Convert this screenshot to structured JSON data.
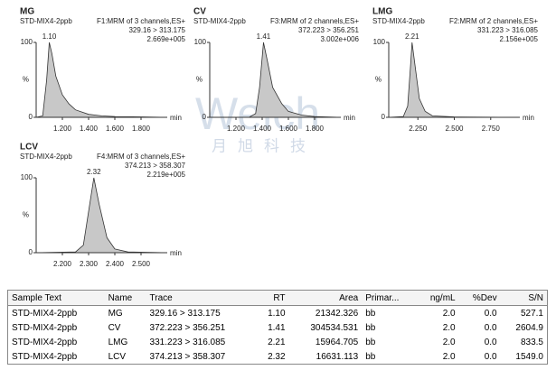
{
  "chart_data": [
    {
      "type": "area",
      "title": "MG",
      "subtitle": "STD-MIX4-2ppb",
      "function": "F1:MRM of 3 channels,ES+",
      "trace": "329.16 > 313.175",
      "intensity": "2.669e+005",
      "x": [
        1.0,
        1.05,
        1.08,
        1.1,
        1.12,
        1.15,
        1.2,
        1.25,
        1.3,
        1.4,
        1.5,
        1.6,
        1.8,
        2.0
      ],
      "values": [
        0,
        2,
        50,
        100,
        85,
        55,
        30,
        18,
        10,
        4,
        2,
        1,
        0.5,
        0
      ],
      "color": "#c8c8c8",
      "peak": {
        "value": 1.1,
        "label": "1.10"
      },
      "x_label": "min",
      "y_label": "%",
      "xlim": [
        1.0,
        2.0
      ],
      "xticks": [
        {
          "value": 1.2,
          "label": "1.200"
        },
        {
          "value": 1.4,
          "label": "1.400"
        },
        {
          "value": 1.6,
          "label": "1.600"
        },
        {
          "value": 1.8,
          "label": "1.800"
        }
      ],
      "ylim": [
        0,
        100
      ],
      "yticks": [
        0,
        100
      ]
    },
    {
      "type": "area",
      "title": "CV",
      "subtitle": "STD-MIX4-2ppb",
      "function": "F3:MRM of 2 channels,ES+",
      "trace": "372.223 > 356.251",
      "intensity": "3.002e+006",
      "x": [
        1.0,
        1.3,
        1.35,
        1.38,
        1.41,
        1.44,
        1.48,
        1.55,
        1.6,
        1.7,
        1.8,
        2.0
      ],
      "values": [
        0,
        0,
        5,
        40,
        100,
        75,
        40,
        18,
        8,
        3,
        1,
        0
      ],
      "color": "#c8c8c8",
      "peak": {
        "value": 1.41,
        "label": "1.41"
      },
      "x_label": "min",
      "y_label": "%",
      "xlim": [
        1.0,
        2.0
      ],
      "xticks": [
        {
          "value": 1.2,
          "label": "1.200"
        },
        {
          "value": 1.4,
          "label": "1.400"
        },
        {
          "value": 1.6,
          "label": "1.600"
        },
        {
          "value": 1.8,
          "label": "1.800"
        }
      ],
      "ylim": [
        0,
        100
      ],
      "yticks": [
        0,
        100
      ]
    },
    {
      "type": "area",
      "title": "LMG",
      "subtitle": "STD-MIX4-2ppb",
      "function": "F2:MRM of 2 channels,ES+",
      "trace": "331.223 > 316.085",
      "intensity": "2.156e+005",
      "x": [
        2.05,
        2.15,
        2.18,
        2.2,
        2.21,
        2.23,
        2.26,
        2.3,
        2.35,
        2.5,
        2.95
      ],
      "values": [
        0,
        1,
        15,
        70,
        100,
        70,
        25,
        8,
        2,
        0.5,
        0
      ],
      "color": "#c8c8c8",
      "peak": {
        "value": 2.21,
        "label": "2.21"
      },
      "x_label": "min",
      "y_label": "%",
      "xlim": [
        2.05,
        2.95
      ],
      "xticks": [
        {
          "value": 2.25,
          "label": "2.250"
        },
        {
          "value": 2.5,
          "label": "2.500"
        },
        {
          "value": 2.75,
          "label": "2.750"
        }
      ],
      "ylim": [
        0,
        100
      ],
      "yticks": [
        0,
        100
      ]
    },
    {
      "type": "area",
      "title": "LCV",
      "subtitle": "STD-MIX4-2ppb",
      "function": "F4:MRM of 3 channels,ES+",
      "trace": "374.213 > 358.307",
      "intensity": "2.219e+005",
      "x": [
        2.1,
        2.25,
        2.28,
        2.3,
        2.32,
        2.34,
        2.37,
        2.4,
        2.45,
        2.6
      ],
      "values": [
        0,
        1,
        10,
        55,
        100,
        65,
        20,
        5,
        1,
        0
      ],
      "color": "#c8c8c8",
      "peak": {
        "value": 2.32,
        "label": "2.32"
      },
      "x_label": "min",
      "y_label": "%",
      "xlim": [
        2.1,
        2.6
      ],
      "xticks": [
        {
          "value": 2.2,
          "label": "2.200"
        },
        {
          "value": 2.3,
          "label": "2.300"
        },
        {
          "value": 2.4,
          "label": "2.400"
        },
        {
          "value": 2.5,
          "label": "2.500"
        }
      ],
      "ylim": [
        0,
        100
      ],
      "yticks": [
        0,
        100
      ]
    }
  ],
  "watermark": {
    "logo": "Welch",
    "text": "月旭科技"
  },
  "table": {
    "columns": [
      "Sample Text",
      "Name",
      "Trace",
      "RT",
      "Area",
      "Primar...",
      "ng/mL",
      "%Dev",
      "S/N"
    ],
    "rows": [
      [
        "STD-MIX4-2ppb",
        "MG",
        "329.16 > 313.175",
        "1.10",
        "21342.326",
        "bb",
        "2.0",
        "0.0",
        "527.1"
      ],
      [
        "STD-MIX4-2ppb",
        "CV",
        "372.223 > 356.251",
        "1.41",
        "304534.531",
        "bb",
        "2.0",
        "0.0",
        "2604.9"
      ],
      [
        "STD-MIX4-2ppb",
        "LMG",
        "331.223 > 316.085",
        "2.21",
        "15964.705",
        "bb",
        "2.0",
        "0.0",
        "833.5"
      ],
      [
        "STD-MIX4-2ppb",
        "LCV",
        "374.213 > 358.307",
        "2.32",
        "16631.113",
        "bb",
        "2.0",
        "0.0",
        "1549.0"
      ]
    ]
  }
}
